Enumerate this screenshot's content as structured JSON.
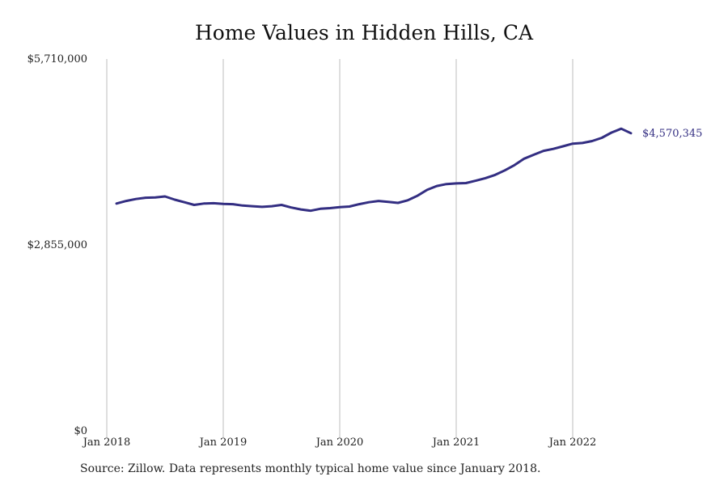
{
  "title": "Home Values in Hidden Hills, CA",
  "source": "Source: Zillow. Data represents monthly typical home value since January 2018.",
  "colors": {
    "line": "#332e82",
    "grid": "#bdbdbd",
    "text": "#222222"
  },
  "chart_data": {
    "type": "line",
    "title": "Home Values in Hidden Hills, CA",
    "xlabel": "",
    "ylabel": "",
    "x_range": [
      "2018-01-01",
      "2022-12-31"
    ],
    "ylim": [
      0,
      5710000
    ],
    "y_ticks": [
      {
        "value": 0,
        "label": "$0"
      },
      {
        "value": 2855000,
        "label": "$2,855,000"
      },
      {
        "value": 5710000,
        "label": "$5,710,000"
      }
    ],
    "x_ticks": [
      {
        "value": "2018-01",
        "label": "Jan 2018"
      },
      {
        "value": "2019-01",
        "label": "Jan 2019"
      },
      {
        "value": "2020-01",
        "label": "Jan 2020"
      },
      {
        "value": "2021-01",
        "label": "Jan 2021"
      },
      {
        "value": "2022-01",
        "label": "Jan 2022"
      }
    ],
    "grid": "vertical",
    "end_label": "$4,570,345",
    "series": [
      {
        "x": [
          "2018-02",
          "2018-03",
          "2018-04",
          "2018-05",
          "2018-06",
          "2018-07",
          "2018-08",
          "2018-09",
          "2018-10",
          "2018-11",
          "2018-12",
          "2019-01",
          "2019-02",
          "2019-03",
          "2019-04",
          "2019-05",
          "2019-06",
          "2019-07",
          "2019-08",
          "2019-09",
          "2019-10",
          "2019-11",
          "2019-12",
          "2020-01",
          "2020-02",
          "2020-03",
          "2020-04",
          "2020-05",
          "2020-06",
          "2020-07",
          "2020-08",
          "2020-09",
          "2020-10",
          "2020-11",
          "2020-12",
          "2021-01",
          "2021-02",
          "2021-03",
          "2021-04",
          "2021-05",
          "2021-06",
          "2021-07",
          "2021-08",
          "2021-09",
          "2021-10",
          "2021-11",
          "2021-12",
          "2022-01",
          "2022-02",
          "2022-03",
          "2022-04",
          "2022-05",
          "2022-06",
          "2022-07"
        ],
        "values": [
          3490000,
          3530000,
          3560000,
          3580000,
          3585000,
          3600000,
          3550000,
          3510000,
          3470000,
          3490000,
          3495000,
          3485000,
          3480000,
          3460000,
          3450000,
          3440000,
          3450000,
          3470000,
          3430000,
          3400000,
          3380000,
          3410000,
          3420000,
          3435000,
          3445000,
          3480000,
          3510000,
          3530000,
          3515000,
          3500000,
          3540000,
          3610000,
          3700000,
          3760000,
          3790000,
          3800000,
          3805000,
          3840000,
          3880000,
          3930000,
          4000000,
          4080000,
          4180000,
          4240000,
          4300000,
          4330000,
          4370000,
          4410000,
          4420000,
          4450000,
          4500000,
          4580000,
          4640000,
          4570345
        ]
      }
    ]
  }
}
